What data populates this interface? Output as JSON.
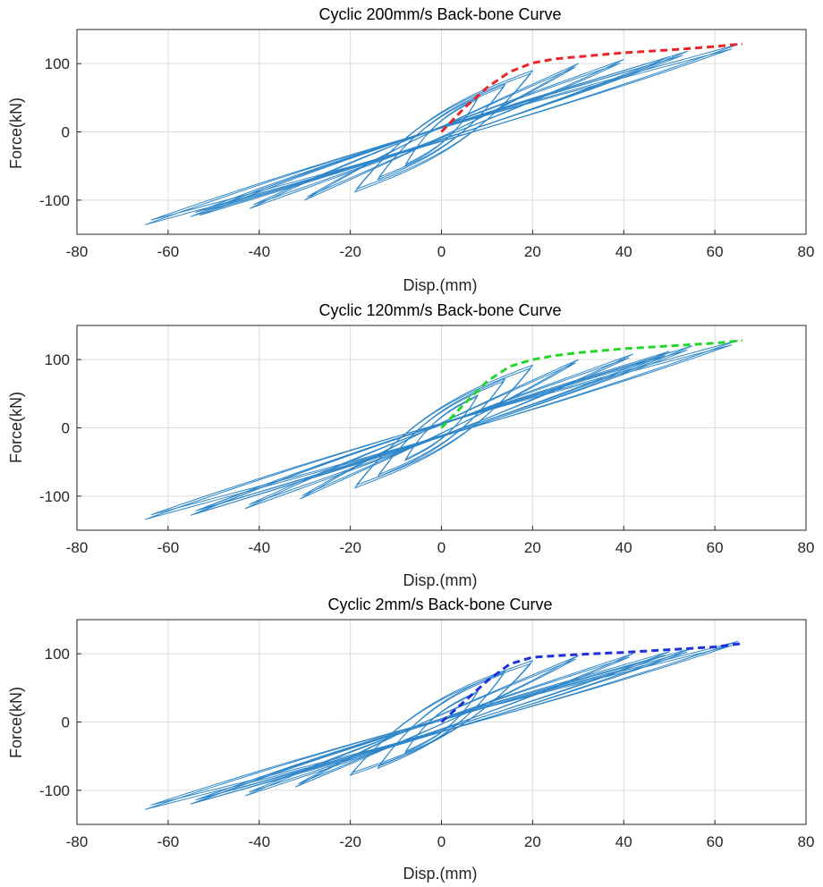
{
  "colors": {
    "hysteresis": "#2e86c9",
    "grid": "#dcdcdc",
    "axis": "#262626"
  },
  "chart_data": [
    {
      "type": "line",
      "title": "Cyclic 200mm/s Back-bone Curve",
      "xlabel": "Disp.(mm)",
      "ylabel": "Force(kN)",
      "xlim": [
        -80,
        80
      ],
      "ylim": [
        -150,
        150
      ],
      "xticks": [
        -80,
        -60,
        -40,
        -20,
        0,
        20,
        40,
        60,
        80
      ],
      "yticks": [
        -100,
        0,
        100
      ],
      "grid": true,
      "loop_peaks": [
        {
          "dpos": 8,
          "fpos": 50,
          "dneg": -8,
          "fneg": -50
        },
        {
          "dpos": 14,
          "fpos": 70,
          "dneg": -14,
          "fneg": -70
        },
        {
          "dpos": 20,
          "fpos": 90,
          "dneg": -19,
          "fneg": -88
        },
        {
          "dpos": 30,
          "fpos": 100,
          "dneg": -30,
          "fneg": -100
        },
        {
          "dpos": 40,
          "fpos": 106,
          "dneg": -42,
          "fneg": -112
        },
        {
          "dpos": 50,
          "fpos": 110,
          "dneg": -53,
          "fneg": -122
        },
        {
          "dpos": 54,
          "fpos": 118,
          "dneg": -55,
          "fneg": -124
        },
        {
          "dpos": 65,
          "fpos": 128,
          "dneg": -65,
          "fneg": -136
        }
      ],
      "series": [
        {
          "color": "#e8262a",
          "x": [
            0,
            5,
            10,
            15,
            20,
            25,
            30,
            40,
            50,
            60,
            66
          ],
          "y": [
            0,
            35,
            65,
            88,
            101,
            107,
            110,
            116,
            120,
            125,
            129
          ]
        }
      ]
    },
    {
      "type": "line",
      "title": "Cyclic 120mm/s Back-bone Curve",
      "xlabel": "Disp.(mm)",
      "ylabel": "Force(kN)",
      "xlim": [
        -80,
        80
      ],
      "ylim": [
        -150,
        150
      ],
      "xticks": [
        -80,
        -60,
        -40,
        -20,
        0,
        20,
        40,
        60,
        80
      ],
      "yticks": [
        -100,
        0,
        100
      ],
      "grid": true,
      "loop_peaks": [
        {
          "dpos": 8,
          "fpos": 48,
          "dneg": -8,
          "fneg": -48
        },
        {
          "dpos": 14,
          "fpos": 72,
          "dneg": -14,
          "fneg": -72
        },
        {
          "dpos": 20,
          "fpos": 92,
          "dneg": -19,
          "fneg": -88
        },
        {
          "dpos": 30,
          "fpos": 100,
          "dneg": -31,
          "fneg": -104
        },
        {
          "dpos": 42,
          "fpos": 108,
          "dneg": -43,
          "fneg": -118
        },
        {
          "dpos": 50,
          "fpos": 112,
          "dneg": -54,
          "fneg": -126
        },
        {
          "dpos": 55,
          "fpos": 120,
          "dneg": -55,
          "fneg": -128
        },
        {
          "dpos": 65,
          "fpos": 128,
          "dneg": -65,
          "fneg": -134
        }
      ],
      "series": [
        {
          "color": "#22d62a",
          "x": [
            0,
            5,
            10,
            15,
            20,
            25,
            30,
            40,
            50,
            60,
            66
          ],
          "y": [
            0,
            35,
            68,
            90,
            100,
            106,
            110,
            116,
            120,
            124,
            128
          ]
        }
      ]
    },
    {
      "type": "line",
      "title": "Cyclic 2mm/s Back-bone Curve",
      "xlabel": "Disp.(mm)",
      "ylabel": "Force(kN)",
      "xlim": [
        -80,
        80
      ],
      "ylim": [
        -150,
        150
      ],
      "xticks": [
        -80,
        -60,
        -40,
        -20,
        0,
        20,
        40,
        60,
        80
      ],
      "yticks": [
        -100,
        0,
        100
      ],
      "grid": true,
      "loop_peaks": [
        {
          "dpos": 8,
          "fpos": 45,
          "dneg": -8,
          "fneg": -45
        },
        {
          "dpos": 14,
          "fpos": 75,
          "dneg": -14,
          "fneg": -68
        },
        {
          "dpos": 20,
          "fpos": 90,
          "dneg": -20,
          "fneg": -78
        },
        {
          "dpos": 30,
          "fpos": 97,
          "dneg": -32,
          "fneg": -95
        },
        {
          "dpos": 42,
          "fpos": 100,
          "dneg": -43,
          "fneg": -108
        },
        {
          "dpos": 50,
          "fpos": 103,
          "dneg": -54,
          "fneg": -118
        },
        {
          "dpos": 55,
          "fpos": 108,
          "dneg": -55,
          "fneg": -120
        },
        {
          "dpos": 65,
          "fpos": 118,
          "dneg": -65,
          "fneg": -128
        }
      ],
      "series": [
        {
          "color": "#1f2fd9",
          "x": [
            0,
            5,
            10,
            15,
            20,
            25,
            30,
            40,
            50,
            60,
            66
          ],
          "y": [
            0,
            30,
            60,
            85,
            95,
            97,
            99,
            102,
            106,
            110,
            115
          ]
        }
      ]
    }
  ]
}
